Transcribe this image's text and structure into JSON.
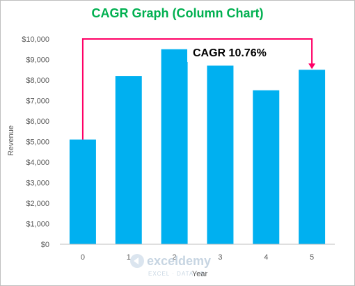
{
  "chart_data": {
    "type": "bar",
    "title": "CAGR Graph (Column Chart)",
    "xlabel": "Year",
    "ylabel": "Revenue",
    "categories": [
      "0",
      "1",
      "2",
      "3",
      "4",
      "5"
    ],
    "values": [
      5100,
      8200,
      9500,
      8700,
      7500,
      8500
    ],
    "ylim": [
      0,
      10000
    ],
    "y_ticks": [
      0,
      1000,
      2000,
      3000,
      4000,
      5000,
      6000,
      7000,
      8000,
      9000,
      10000
    ],
    "y_tick_labels": [
      "$0",
      "$1,000",
      "$2,000",
      "$3,000",
      "$4,000",
      "$5,000",
      "$6,000",
      "$7,000",
      "$8,000",
      "$9,000",
      "$10,000"
    ],
    "bar_color": "#00b0f0",
    "grid": false,
    "legend": "none",
    "annotation": {
      "text": "CAGR 10.76%",
      "color": "#ff0066",
      "from_category": "0",
      "to_category": "5"
    }
  },
  "watermark": {
    "name": "exceldemy",
    "tagline": "EXCEL · DATA · BI"
  },
  "colors": {
    "title": "#00b050",
    "bars": "#00b0f0",
    "arrow": "#ff0066",
    "axis": "#bfbfbf",
    "text": "#595959"
  }
}
